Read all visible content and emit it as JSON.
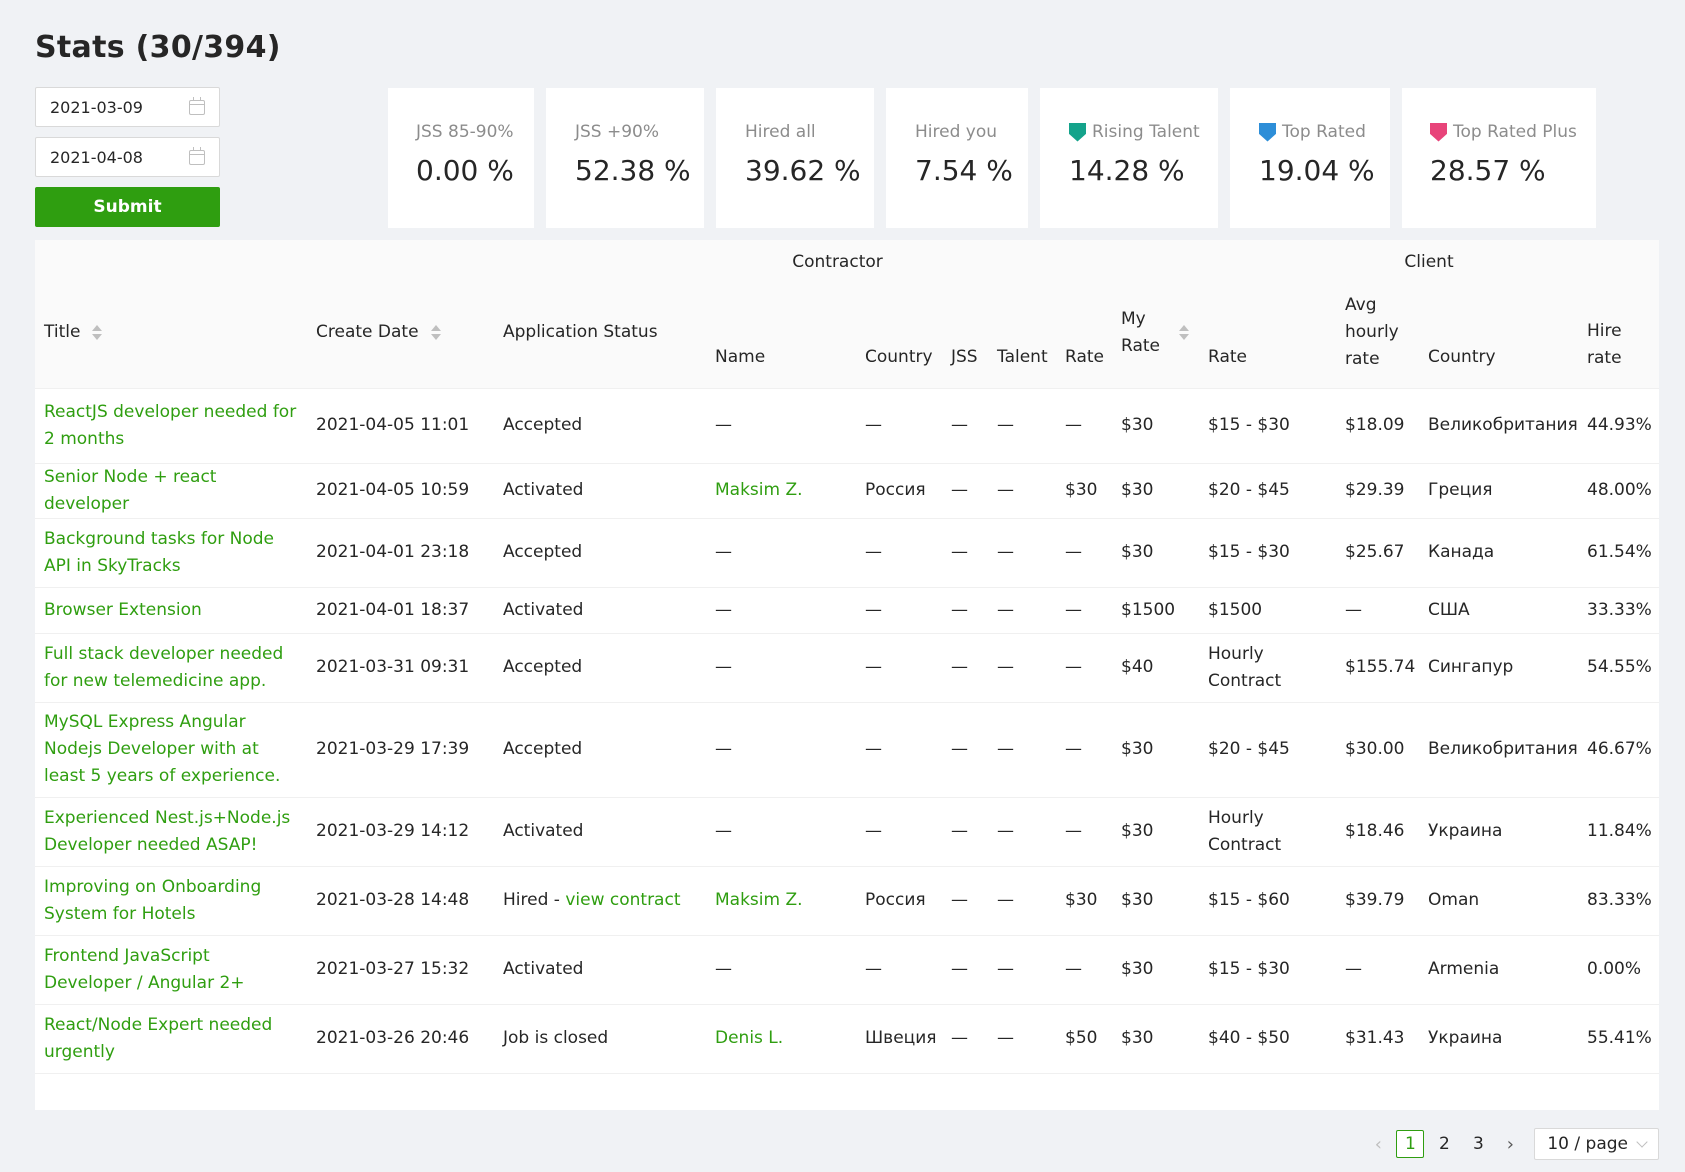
{
  "page": {
    "title": "Stats (30/394)"
  },
  "filters": {
    "date_from": "2021-03-09",
    "date_to": "2021-04-08",
    "submit_label": "Submit"
  },
  "stats": [
    {
      "label": "JSS 85-90%",
      "value": "0.00 %"
    },
    {
      "label": "JSS +90%",
      "value": "52.38 %"
    },
    {
      "label": "Hired all",
      "value": "39.62 %"
    },
    {
      "label": "Hired you",
      "value": "7.54 %"
    },
    {
      "label": "Rising Talent",
      "value": "14.28 %",
      "icon": "shield-icon",
      "color": "#14a38b"
    },
    {
      "label": "Top Rated",
      "value": "19.04 %",
      "icon": "shield-icon",
      "color": "#2d8ed8"
    },
    {
      "label": "Top Rated Plus",
      "value": "28.57 %",
      "icon": "shield-icon",
      "color": "#e8447a"
    }
  ],
  "table": {
    "group_headers": {
      "contractor": "Contractor",
      "client": "Client"
    },
    "headers": {
      "title": "Title",
      "create_date": "Create Date",
      "application_status": "Application Status",
      "name": "Name",
      "country": "Country",
      "jss": "JSS",
      "talent": "Talent",
      "rate": "Rate",
      "my_rate": "My Rate",
      "client_rate": "Rate",
      "avg_hourly_rate": "Avg hourly rate",
      "client_country": "Country",
      "hire_rate": "Hire rate"
    },
    "rows": [
      {
        "title": "ReactJS developer needed for 2 months",
        "date": "2021-04-05 11:01",
        "status": "Accepted",
        "status_link": "",
        "name": "—",
        "country": "—",
        "jss": "—",
        "talent": "—",
        "rate": "—",
        "my_rate": "$30",
        "client_rate": "$15 - $30",
        "avg_hourly": "$18.09",
        "client_country": "Великобритания",
        "hire_rate": "44.93%"
      },
      {
        "title": "Senior Node + react developer",
        "date": "2021-04-05 10:59",
        "status": "Activated",
        "status_link": "",
        "name": "Maksim Z.",
        "country": "Россия",
        "jss": "—",
        "talent": "—",
        "rate": "$30",
        "my_rate": "$30",
        "client_rate": "$20 - $45",
        "avg_hourly": "$29.39",
        "client_country": "Греция",
        "hire_rate": "48.00%"
      },
      {
        "title": "Background tasks for Node API in SkyTracks",
        "date": "2021-04-01 23:18",
        "status": "Accepted",
        "status_link": "",
        "name": "—",
        "country": "—",
        "jss": "—",
        "talent": "—",
        "rate": "—",
        "my_rate": "$30",
        "client_rate": "$15 - $30",
        "avg_hourly": "$25.67",
        "client_country": "Канада",
        "hire_rate": "61.54%"
      },
      {
        "title": "Browser Extension",
        "date": "2021-04-01 18:37",
        "status": "Activated",
        "status_link": "",
        "name": "—",
        "country": "—",
        "jss": "—",
        "talent": "—",
        "rate": "—",
        "my_rate": "$1500",
        "client_rate": "$1500",
        "avg_hourly": "—",
        "client_country": "США",
        "hire_rate": "33.33%"
      },
      {
        "title": "Full stack developer needed for new telemedicine app.",
        "date": "2021-03-31 09:31",
        "status": "Accepted",
        "status_link": "",
        "name": "—",
        "country": "—",
        "jss": "—",
        "talent": "—",
        "rate": "—",
        "my_rate": "$40",
        "client_rate": "Hourly Contract",
        "avg_hourly": "$155.74",
        "client_country": "Сингапур",
        "hire_rate": "54.55%"
      },
      {
        "title": "MySQL Express Angular Nodejs Developer with at least 5 years of experience.",
        "date": "2021-03-29 17:39",
        "status": "Accepted",
        "status_link": "",
        "name": "—",
        "country": "—",
        "jss": "—",
        "talent": "—",
        "rate": "—",
        "my_rate": "$30",
        "client_rate": "$20 - $45",
        "avg_hourly": "$30.00",
        "client_country": "Великобритания",
        "hire_rate": "46.67%"
      },
      {
        "title": "Experienced Nest.js+Node.js Developer needed ASAP!",
        "date": "2021-03-29 14:12",
        "status": "Activated",
        "status_link": "",
        "name": "—",
        "country": "—",
        "jss": "—",
        "talent": "—",
        "rate": "—",
        "my_rate": "$30",
        "client_rate": "Hourly Contract",
        "avg_hourly": "$18.46",
        "client_country": "Украина",
        "hire_rate": "11.84%"
      },
      {
        "title": "Improving on Onboarding System for Hotels",
        "date": "2021-03-28 14:48",
        "status": "Hired - ",
        "status_link": "view contract",
        "name": "Maksim Z.",
        "country": "Россия",
        "jss": "—",
        "talent": "—",
        "rate": "$30",
        "my_rate": "$30",
        "client_rate": "$15 - $60",
        "avg_hourly": "$39.79",
        "client_country": "Oman",
        "hire_rate": "83.33%"
      },
      {
        "title": "Frontend JavaScript Developer / Angular 2+",
        "date": "2021-03-27 15:32",
        "status": "Activated",
        "status_link": "",
        "name": "—",
        "country": "—",
        "jss": "—",
        "talent": "—",
        "rate": "—",
        "my_rate": "$30",
        "client_rate": "$15 - $30",
        "avg_hourly": "—",
        "client_country": "Armenia",
        "hire_rate": "0.00%"
      },
      {
        "title": "React/Node Expert needed urgently",
        "date": "2021-03-26 20:46",
        "status": "Job is closed",
        "status_link": "",
        "name": "Denis L.",
        "country": "Швеция",
        "jss": "—",
        "talent": "—",
        "rate": "$50",
        "my_rate": "$30",
        "client_rate": "$40 - $50",
        "avg_hourly": "$31.43",
        "client_country": "Украина",
        "hire_rate": "55.41%"
      }
    ]
  },
  "pagination": {
    "pages": [
      "1",
      "2",
      "3"
    ],
    "current": "1",
    "page_size": "10 / page"
  },
  "colors": {
    "accent": "#2f9e10",
    "background": "#f0f2f5"
  }
}
